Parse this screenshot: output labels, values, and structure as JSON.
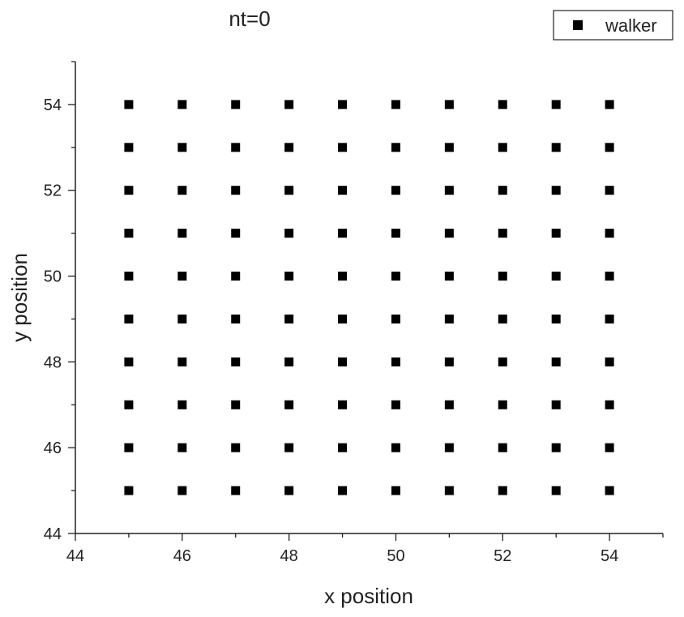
{
  "chart_data": {
    "type": "scatter",
    "title": "nt=0",
    "xlabel": "x position",
    "ylabel": "y position",
    "xlim": [
      44,
      55
    ],
    "ylim": [
      44,
      55
    ],
    "x_ticks": [
      44,
      46,
      48,
      50,
      52,
      54
    ],
    "y_ticks": [
      44,
      46,
      48,
      50,
      52,
      54
    ],
    "grid": false,
    "legend_position": "top-right",
    "marker": "square",
    "color": "#000000",
    "series": [
      {
        "name": "walker",
        "points": [
          [
            45,
            45
          ],
          [
            46,
            45
          ],
          [
            47,
            45
          ],
          [
            48,
            45
          ],
          [
            49,
            45
          ],
          [
            50,
            45
          ],
          [
            51,
            45
          ],
          [
            52,
            45
          ],
          [
            53,
            45
          ],
          [
            54,
            45
          ],
          [
            45,
            46
          ],
          [
            46,
            46
          ],
          [
            47,
            46
          ],
          [
            48,
            46
          ],
          [
            49,
            46
          ],
          [
            50,
            46
          ],
          [
            51,
            46
          ],
          [
            52,
            46
          ],
          [
            53,
            46
          ],
          [
            54,
            46
          ],
          [
            45,
            47
          ],
          [
            46,
            47
          ],
          [
            47,
            47
          ],
          [
            48,
            47
          ],
          [
            49,
            47
          ],
          [
            50,
            47
          ],
          [
            51,
            47
          ],
          [
            52,
            47
          ],
          [
            53,
            47
          ],
          [
            54,
            47
          ],
          [
            45,
            48
          ],
          [
            46,
            48
          ],
          [
            47,
            48
          ],
          [
            48,
            48
          ],
          [
            49,
            48
          ],
          [
            50,
            48
          ],
          [
            51,
            48
          ],
          [
            52,
            48
          ],
          [
            53,
            48
          ],
          [
            54,
            48
          ],
          [
            45,
            49
          ],
          [
            46,
            49
          ],
          [
            47,
            49
          ],
          [
            48,
            49
          ],
          [
            49,
            49
          ],
          [
            50,
            49
          ],
          [
            51,
            49
          ],
          [
            52,
            49
          ],
          [
            53,
            49
          ],
          [
            54,
            49
          ],
          [
            45,
            50
          ],
          [
            46,
            50
          ],
          [
            47,
            50
          ],
          [
            48,
            50
          ],
          [
            49,
            50
          ],
          [
            50,
            50
          ],
          [
            51,
            50
          ],
          [
            52,
            50
          ],
          [
            53,
            50
          ],
          [
            54,
            50
          ],
          [
            45,
            51
          ],
          [
            46,
            51
          ],
          [
            47,
            51
          ],
          [
            48,
            51
          ],
          [
            49,
            51
          ],
          [
            50,
            51
          ],
          [
            51,
            51
          ],
          [
            52,
            51
          ],
          [
            53,
            51
          ],
          [
            54,
            51
          ],
          [
            45,
            52
          ],
          [
            46,
            52
          ],
          [
            47,
            52
          ],
          [
            48,
            52
          ],
          [
            49,
            52
          ],
          [
            50,
            52
          ],
          [
            51,
            52
          ],
          [
            52,
            52
          ],
          [
            53,
            52
          ],
          [
            54,
            52
          ],
          [
            45,
            53
          ],
          [
            46,
            53
          ],
          [
            47,
            53
          ],
          [
            48,
            53
          ],
          [
            49,
            53
          ],
          [
            50,
            53
          ],
          [
            51,
            53
          ],
          [
            52,
            53
          ],
          [
            53,
            53
          ],
          [
            54,
            53
          ],
          [
            45,
            54
          ],
          [
            46,
            54
          ],
          [
            47,
            54
          ],
          [
            48,
            54
          ],
          [
            49,
            54
          ],
          [
            50,
            54
          ],
          [
            51,
            54
          ],
          [
            52,
            54
          ],
          [
            53,
            54
          ],
          [
            54,
            54
          ]
        ]
      }
    ]
  }
}
